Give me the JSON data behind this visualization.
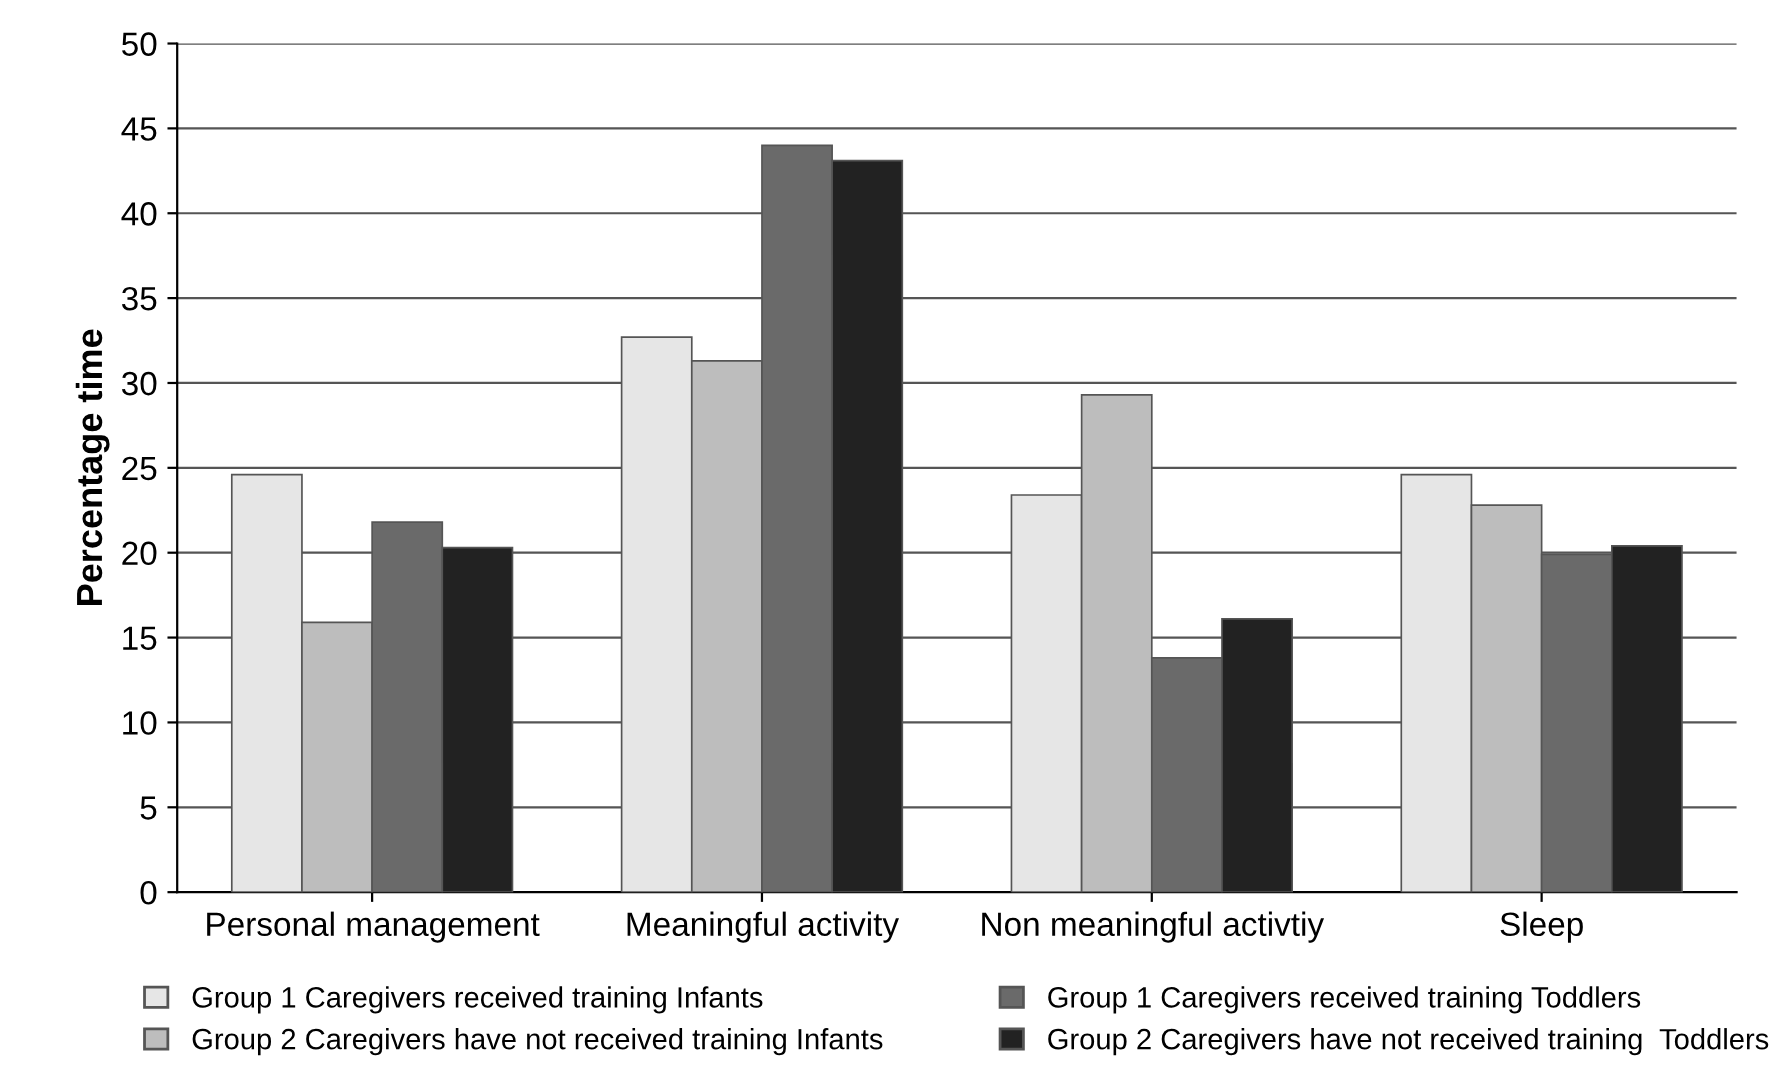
{
  "chart_data": {
    "type": "bar",
    "ylabel": "Percentage time",
    "categories": [
      "Personal management",
      "Meaningful activity",
      "Non meaningful activtiy",
      "Sleep"
    ],
    "series": [
      {
        "name": "Group 1 Caregivers received training Infants",
        "color": "#e6e6e6",
        "values": [
          24.6,
          32.7,
          23.4,
          24.6
        ]
      },
      {
        "name": "Group 2 Caregivers have not received training Infants",
        "color": "#bdbdbd",
        "values": [
          15.9,
          31.3,
          29.3,
          22.8
        ]
      },
      {
        "name": "Group 1 Caregivers received training Toddlers",
        "color": "#6a6a6a",
        "values": [
          21.8,
          44.0,
          13.8,
          19.9
        ]
      },
      {
        "name": "Group 2 Caregivers have not received training  Toddlers",
        "color": "#222222",
        "values": [
          20.3,
          43.1,
          16.1,
          20.4
        ]
      }
    ],
    "ylim": [
      0,
      50
    ],
    "yticks": [
      0,
      5,
      10,
      15,
      20,
      25,
      30,
      35,
      40,
      45,
      50
    ],
    "grid": "y",
    "legend": "bottom"
  }
}
